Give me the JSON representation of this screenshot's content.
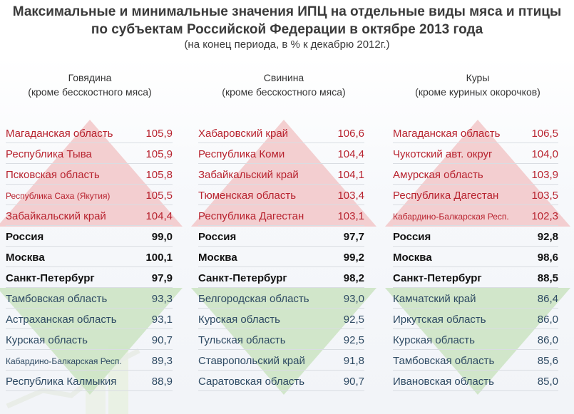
{
  "header": {
    "title_line1": "Максимальные и минимальные значения ИПЦ на отдельные виды мяса и птицы",
    "title_line2": "по субъектам Российской Федерации в октябре 2013 года",
    "subtitle": "(на конец периода, в % к декабрю 2012г.)"
  },
  "colors": {
    "max_text": "#b8232f",
    "min_text": "#2e4a63",
    "up_triangle": "#f2c7c8",
    "down_triangle": "#cde4c4"
  },
  "columns": [
    {
      "title": "Говядина",
      "subtitle": "(кроме бесскостного мяса)",
      "rows": [
        {
          "name": "Магаданская область",
          "value": "105,9",
          "kind": "top"
        },
        {
          "name": "Республика Тыва",
          "value": "105,9",
          "kind": "top"
        },
        {
          "name": "Псковская область",
          "value": "105,8",
          "kind": "top"
        },
        {
          "name": "Республика Саха (Якутия)",
          "value": "105,5",
          "kind": "top",
          "small": true
        },
        {
          "name": "Забайкальский край",
          "value": "104,4",
          "kind": "top"
        },
        {
          "name": "Россия",
          "value": "99,0",
          "kind": "mid"
        },
        {
          "name": "Москва",
          "value": "100,1",
          "kind": "mid"
        },
        {
          "name": "Санкт-Петербург",
          "value": "97,9",
          "kind": "mid"
        },
        {
          "name": "Тамбовская область",
          "value": "93,3",
          "kind": "bot"
        },
        {
          "name": "Астраханская область",
          "value": "93,1",
          "kind": "bot"
        },
        {
          "name": "Курская область",
          "value": "90,7",
          "kind": "bot"
        },
        {
          "name": "Кабардино-Балкарская Респ.",
          "value": "89,3",
          "kind": "bot",
          "small": true
        },
        {
          "name": "Республика Калмыкия",
          "value": "88,9",
          "kind": "bot"
        }
      ]
    },
    {
      "title": "Свинина",
      "subtitle": "(кроме бесскостного мяса)",
      "rows": [
        {
          "name": "Хабаровский край",
          "value": "106,6",
          "kind": "top"
        },
        {
          "name": "Республика Коми",
          "value": "104,4",
          "kind": "top"
        },
        {
          "name": "Забайкальский край",
          "value": "104,1",
          "kind": "top"
        },
        {
          "name": "Тюменская область",
          "value": "103,4",
          "kind": "top"
        },
        {
          "name": "Республика Дагестан",
          "value": "103,1",
          "kind": "top"
        },
        {
          "name": "Россия",
          "value": "97,7",
          "kind": "mid"
        },
        {
          "name": "Москва",
          "value": "99,2",
          "kind": "mid"
        },
        {
          "name": "Санкт-Петербург",
          "value": "98,2",
          "kind": "mid"
        },
        {
          "name": "Белгородская область",
          "value": "93,0",
          "kind": "bot"
        },
        {
          "name": "Курская область",
          "value": "92,5",
          "kind": "bot"
        },
        {
          "name": "Тульская область",
          "value": "92,5",
          "kind": "bot"
        },
        {
          "name": "Ставропольский край",
          "value": "91,8",
          "kind": "bot"
        },
        {
          "name": "Саратовская область",
          "value": "90,7",
          "kind": "bot"
        }
      ]
    },
    {
      "title": "Куры",
      "subtitle": "(кроме куриных окорочков)",
      "rows": [
        {
          "name": "Магаданская область",
          "value": "106,5",
          "kind": "top"
        },
        {
          "name": "Чукотский авт. округ",
          "value": "104,0",
          "kind": "top"
        },
        {
          "name": "Амурская область",
          "value": "103,9",
          "kind": "top"
        },
        {
          "name": "Республика Дагестан",
          "value": "103,5",
          "kind": "top"
        },
        {
          "name": "Кабардино-Балкарская Респ.",
          "value": "102,3",
          "kind": "top",
          "small": true
        },
        {
          "name": "Россия",
          "value": "92,8",
          "kind": "mid"
        },
        {
          "name": "Москва",
          "value": "98,6",
          "kind": "mid"
        },
        {
          "name": "Санкт-Петербург",
          "value": "88,5",
          "kind": "mid"
        },
        {
          "name": "Камчатский край",
          "value": "86,4",
          "kind": "bot"
        },
        {
          "name": "Иркутская область",
          "value": "86,0",
          "kind": "bot"
        },
        {
          "name": "Курская область",
          "value": "86,0",
          "kind": "bot"
        },
        {
          "name": "Тамбовская область",
          "value": "85,6",
          "kind": "bot"
        },
        {
          "name": "Ивановская область",
          "value": "85,0",
          "kind": "bot"
        }
      ]
    }
  ]
}
